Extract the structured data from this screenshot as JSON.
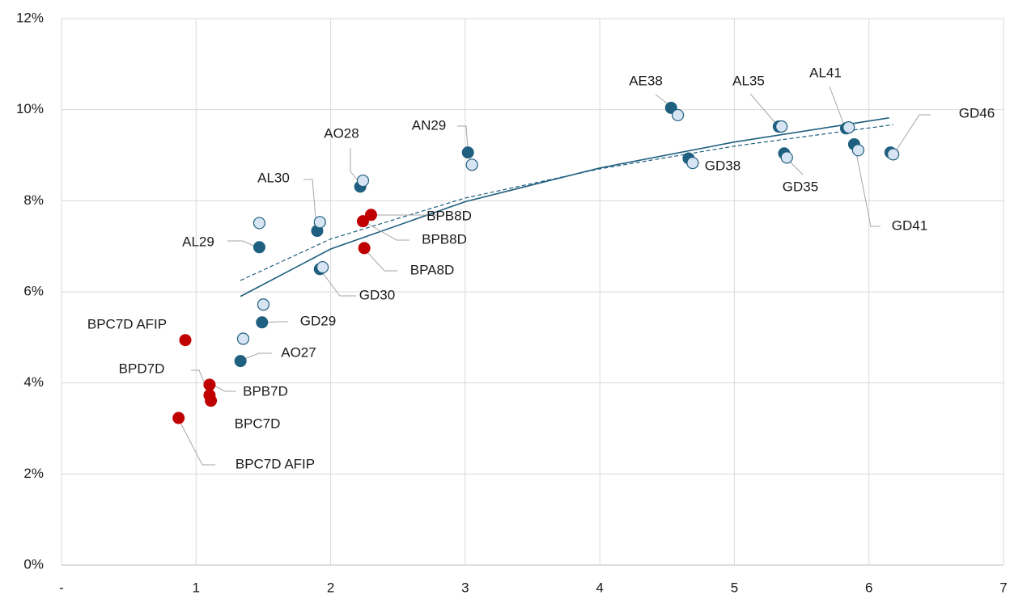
{
  "chart_data": {
    "type": "scatter",
    "xlim": [
      0,
      7
    ],
    "xticks": [
      {
        "value": 0,
        "label": "-"
      },
      1,
      2,
      3,
      4,
      5,
      6,
      7
    ],
    "ylim": [
      0,
      12
    ],
    "yticks": [
      {
        "value": 0,
        "label": "0%"
      },
      {
        "value": 2,
        "label": "2%"
      },
      {
        "value": 4,
        "label": "4%"
      },
      {
        "value": 6,
        "label": "6%"
      },
      {
        "value": 8,
        "label": "8%"
      },
      {
        "value": 10,
        "label": "10%"
      },
      {
        "value": 12,
        "label": "12%"
      }
    ],
    "grid": true,
    "series": [
      {
        "color": "#1f5f7f",
        "x": [
          1.47,
          1.9,
          1.92,
          1.49,
          1.33,
          2.22,
          3.02,
          4.53,
          4.66,
          5.33,
          5.37,
          5.83,
          5.89,
          6.16
        ],
        "values": [
          6.98,
          7.34,
          6.5,
          5.33,
          4.48,
          8.31,
          9.06,
          10.04,
          8.93,
          9.63,
          9.04,
          9.59,
          9.24,
          9.06
        ],
        "labels": [
          "AL29",
          "AL30",
          "GD30",
          "GD29",
          "AO27",
          "AO28",
          "AN29",
          "AE38",
          "GD38",
          "AL35",
          "GD35",
          "AL41",
          "GD41",
          "GD46"
        ]
      },
      {
        "color": "#d6e4f4",
        "x": [
          1.47,
          1.92,
          1.94,
          1.5,
          1.35,
          2.24,
          3.05,
          4.58,
          4.69,
          5.35,
          5.39,
          5.85,
          5.92,
          6.18
        ],
        "values": [
          7.51,
          7.53,
          6.54,
          5.72,
          4.97,
          8.44,
          8.79,
          9.88,
          8.83,
          9.63,
          8.95,
          9.61,
          9.11,
          9.02
        ]
      },
      {
        "color": "#c00000",
        "x": [
          0.92,
          1.1,
          1.1,
          1.11,
          0.87,
          2.3,
          2.24,
          2.25
        ],
        "values": [
          4.94,
          3.96,
          3.73,
          3.61,
          3.23,
          7.69,
          7.55,
          6.96
        ],
        "labels": [
          "BPC7D AFIP",
          "BPB7D",
          "BPD7D",
          "BPC7D",
          "BPC7D AFIP",
          "BPB8D",
          "BPB8D",
          "BPA8D"
        ]
      }
    ],
    "trendlines": [
      {
        "color": "#1f5f7f",
        "dashed": false,
        "x": [
          1.33,
          2,
          3,
          4,
          5,
          6.15
        ],
        "values": [
          5.9,
          6.94,
          7.98,
          8.72,
          9.29,
          9.82
        ]
      },
      {
        "color": "#1f5f7f",
        "dashed": true,
        "x": [
          1.33,
          2,
          3,
          4,
          5,
          6.18
        ],
        "values": [
          6.25,
          7.16,
          8.06,
          8.7,
          9.2,
          9.67
        ]
      }
    ]
  }
}
